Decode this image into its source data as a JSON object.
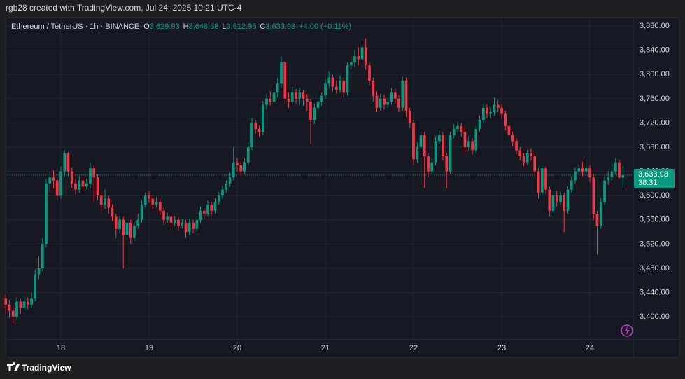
{
  "header": "rgb28 created with TradingView.com, Jul 24, 2025 10:21 UTC-4",
  "chart_data": {
    "type": "candlestick",
    "title": "Ethereum / TetherUS · 1h · BINANCE",
    "ohlc_legend": [
      {
        "key": "O",
        "label": "3,629.93"
      },
      {
        "key": "H",
        "label": "3,648.68"
      },
      {
        "key": "L",
        "label": "3,612.96"
      },
      {
        "key": "C",
        "label": "3,633.93"
      }
    ],
    "change": "+4.00 (+0.11%)",
    "x": [
      17.375,
      17.417,
      17.458,
      17.5,
      17.542,
      17.583,
      17.625,
      17.667,
      17.708,
      17.75,
      17.792,
      17.833,
      17.875,
      17.917,
      17.958,
      18,
      18.042,
      18.083,
      18.125,
      18.167,
      18.208,
      18.25,
      18.292,
      18.333,
      18.375,
      18.417,
      18.458,
      18.5,
      18.542,
      18.583,
      18.625,
      18.667,
      18.708,
      18.75,
      18.792,
      18.833,
      18.875,
      18.917,
      18.958,
      19,
      19.042,
      19.083,
      19.125,
      19.167,
      19.208,
      19.25,
      19.292,
      19.333,
      19.375,
      19.417,
      19.458,
      19.5,
      19.542,
      19.583,
      19.625,
      19.667,
      19.708,
      19.75,
      19.792,
      19.833,
      19.875,
      19.917,
      19.958,
      20,
      20.042,
      20.083,
      20.125,
      20.167,
      20.208,
      20.25,
      20.292,
      20.333,
      20.375,
      20.417,
      20.458,
      20.5,
      20.542,
      20.583,
      20.625,
      20.667,
      20.708,
      20.75,
      20.792,
      20.833,
      20.875,
      20.917,
      20.958,
      21,
      21.042,
      21.083,
      21.125,
      21.167,
      21.208,
      21.25,
      21.292,
      21.333,
      21.375,
      21.417,
      21.458,
      21.5,
      21.542,
      21.583,
      21.625,
      21.667,
      21.708,
      21.75,
      21.792,
      21.833,
      21.875,
      21.917,
      21.958,
      22,
      22.042,
      22.083,
      22.125,
      22.167,
      22.208,
      22.25,
      22.292,
      22.333,
      22.375,
      22.417,
      22.458,
      22.5,
      22.542,
      22.583,
      22.625,
      22.667,
      22.708,
      22.75,
      22.792,
      22.833,
      22.875,
      22.917,
      22.958,
      23,
      23.042,
      23.083,
      23.125,
      23.167,
      23.208,
      23.25,
      23.292,
      23.333,
      23.375,
      23.417,
      23.458,
      23.5,
      23.542,
      23.583,
      23.625,
      23.667,
      23.708,
      23.75,
      23.792,
      23.833,
      23.875,
      23.917,
      23.958,
      24,
      24.042,
      24.083,
      24.125,
      24.167,
      24.208,
      24.25,
      24.292,
      24.333,
      24.375
    ],
    "open": [
      3430,
      3420,
      3410,
      3400,
      3425,
      3415,
      3425,
      3420,
      3430,
      3470,
      3480,
      3520,
      3620,
      3630,
      3625,
      3600,
      3640,
      3670,
      3640,
      3620,
      3610,
      3625,
      3615,
      3620,
      3645,
      3630,
      3600,
      3585,
      3595,
      3580,
      3565,
      3545,
      3560,
      3535,
      3555,
      3530,
      3550,
      3560,
      3585,
      3600,
      3595,
      3585,
      3590,
      3575,
      3560,
      3565,
      3555,
      3560,
      3550,
      3555,
      3540,
      3555,
      3545,
      3560,
      3575,
      3570,
      3585,
      3575,
      3590,
      3600,
      3610,
      3620,
      3630,
      3655,
      3650,
      3640,
      3655,
      3680,
      3720,
      3710,
      3705,
      3750,
      3760,
      3755,
      3770,
      3785,
      3820,
      3760,
      3755,
      3770,
      3760,
      3770,
      3760,
      3755,
      3725,
      3745,
      3755,
      3765,
      3785,
      3795,
      3780,
      3775,
      3790,
      3770,
      3815,
      3820,
      3830,
      3825,
      3845,
      3815,
      3790,
      3765,
      3745,
      3760,
      3750,
      3755,
      3770,
      3760,
      3745,
      3790,
      3740,
      3720,
      3660,
      3680,
      3700,
      3665,
      3640,
      3655,
      3690,
      3700,
      3665,
      3640,
      3700,
      3710,
      3715,
      3705,
      3680,
      3690,
      3675,
      3710,
      3725,
      3745,
      3735,
      3738,
      3750,
      3745,
      3735,
      3715,
      3700,
      3690,
      3675,
      3665,
      3655,
      3670,
      3665,
      3640,
      3605,
      3645,
      3610,
      3575,
      3600,
      3590,
      3600,
      3575,
      3610,
      3625,
      3640,
      3645,
      3640,
      3645,
      3630,
      3570,
      3550,
      3590,
      3625,
      3630,
      3640,
      3655,
      3629.93
    ],
    "high": [
      3436,
      3428,
      3418,
      3432,
      3430,
      3433,
      3432,
      3440,
      3478,
      3500,
      3530,
      3628,
      3640,
      3642,
      3632,
      3648,
      3675,
      3672,
      3646,
      3628,
      3632,
      3630,
      3628,
      3655,
      3650,
      3635,
      3606,
      3610,
      3600,
      3586,
      3570,
      3566,
      3565,
      3562,
      3560,
      3556,
      3570,
      3592,
      3605,
      3608,
      3600,
      3598,
      3595,
      3580,
      3572,
      3570,
      3566,
      3565,
      3562,
      3560,
      3562,
      3560,
      3566,
      3582,
      3580,
      3592,
      3590,
      3596,
      3606,
      3616,
      3626,
      3638,
      3680,
      3662,
      3656,
      3662,
      3688,
      3728,
      3725,
      3716,
      3756,
      3768,
      3772,
      3778,
      3795,
      3830,
      3822,
      3770,
      3780,
      3776,
      3778,
      3774,
      3768,
      3760,
      3752,
      3762,
      3770,
      3792,
      3805,
      3800,
      3790,
      3798,
      3795,
      3820,
      3830,
      3840,
      3845,
      3852,
      3860,
      3820,
      3795,
      3772,
      3768,
      3766,
      3762,
      3778,
      3776,
      3765,
      3796,
      3795,
      3745,
      3725,
      3688,
      3706,
      3705,
      3670,
      3662,
      3698,
      3708,
      3705,
      3670,
      3706,
      3718,
      3722,
      3720,
      3710,
      3698,
      3695,
      3716,
      3732,
      3752,
      3750,
      3745,
      3762,
      3758,
      3750,
      3740,
      3720,
      3706,
      3695,
      3680,
      3670,
      3676,
      3678,
      3670,
      3645,
      3650,
      3648,
      3615,
      3606,
      3608,
      3606,
      3605,
      3615,
      3632,
      3646,
      3652,
      3656,
      3660,
      3650,
      3636,
      3575,
      3596,
      3632,
      3640,
      3652,
      3662,
      3660,
      3648.68
    ],
    "low": [
      3405,
      3398,
      3388,
      3395,
      3405,
      3410,
      3412,
      3415,
      3425,
      3462,
      3475,
      3515,
      3605,
      3612,
      3590,
      3595,
      3632,
      3632,
      3612,
      3602,
      3605,
      3608,
      3610,
      3612,
      3590,
      3592,
      3575,
      3578,
      3570,
      3558,
      3530,
      3538,
      3480,
      3528,
      3520,
      3525,
      3545,
      3556,
      3580,
      3588,
      3578,
      3580,
      3568,
      3552,
      3555,
      3548,
      3550,
      3542,
      3545,
      3530,
      3535,
      3538,
      3540,
      3555,
      3562,
      3565,
      3568,
      3570,
      3585,
      3595,
      3605,
      3615,
      3625,
      3640,
      3632,
      3636,
      3650,
      3675,
      3702,
      3698,
      3700,
      3742,
      3748,
      3750,
      3762,
      3778,
      3752,
      3745,
      3750,
      3752,
      3750,
      3748,
      3740,
      3685,
      3718,
      3738,
      3748,
      3760,
      3778,
      3772,
      3768,
      3770,
      3762,
      3765,
      3808,
      3812,
      3815,
      3818,
      3808,
      3782,
      3755,
      3738,
      3740,
      3742,
      3745,
      3750,
      3752,
      3738,
      3740,
      3730,
      3712,
      3650,
      3655,
      3672,
      3612,
      3630,
      3635,
      3650,
      3685,
      3658,
      3612,
      3636,
      3695,
      3705,
      3698,
      3672,
      3675,
      3668,
      3670,
      3705,
      3720,
      3728,
      3728,
      3732,
      3738,
      3728,
      3708,
      3692,
      3682,
      3668,
      3658,
      3648,
      3650,
      3658,
      3632,
      3595,
      3600,
      3602,
      3565,
      3570,
      3582,
      3585,
      3540,
      3570,
      3605,
      3620,
      3635,
      3632,
      3635,
      3622,
      3560,
      3503,
      3545,
      3585,
      3618,
      3625,
      3635,
      3628,
      3612.96
    ],
    "close": [
      3420,
      3410,
      3400,
      3425,
      3415,
      3425,
      3420,
      3430,
      3470,
      3480,
      3520,
      3620,
      3630,
      3625,
      3600,
      3640,
      3670,
      3640,
      3620,
      3610,
      3625,
      3615,
      3620,
      3645,
      3630,
      3600,
      3585,
      3595,
      3580,
      3565,
      3545,
      3560,
      3535,
      3555,
      3530,
      3550,
      3560,
      3585,
      3600,
      3595,
      3585,
      3590,
      3575,
      3560,
      3565,
      3555,
      3560,
      3550,
      3555,
      3540,
      3555,
      3545,
      3560,
      3575,
      3570,
      3585,
      3575,
      3590,
      3600,
      3610,
      3620,
      3630,
      3655,
      3650,
      3640,
      3655,
      3680,
      3720,
      3710,
      3705,
      3750,
      3760,
      3755,
      3770,
      3785,
      3820,
      3760,
      3755,
      3770,
      3760,
      3770,
      3760,
      3755,
      3725,
      3745,
      3755,
      3765,
      3785,
      3795,
      3780,
      3775,
      3790,
      3770,
      3815,
      3820,
      3830,
      3825,
      3845,
      3815,
      3790,
      3765,
      3745,
      3760,
      3750,
      3755,
      3770,
      3760,
      3745,
      3790,
      3740,
      3720,
      3660,
      3680,
      3700,
      3665,
      3640,
      3655,
      3690,
      3700,
      3665,
      3640,
      3700,
      3710,
      3715,
      3705,
      3680,
      3690,
      3675,
      3710,
      3725,
      3745,
      3735,
      3738,
      3750,
      3745,
      3735,
      3715,
      3700,
      3690,
      3675,
      3665,
      3655,
      3670,
      3665,
      3640,
      3605,
      3645,
      3610,
      3575,
      3600,
      3590,
      3600,
      3575,
      3610,
      3625,
      3640,
      3645,
      3640,
      3645,
      3630,
      3570,
      3550,
      3590,
      3625,
      3630,
      3640,
      3655,
      3629.93,
      3633.93
    ],
    "up_color": "#089981",
    "down_color": "#f23645",
    "xlim": [
      17.373,
      24.492
    ],
    "xticks": [
      18,
      19,
      20,
      21,
      22,
      23,
      24
    ],
    "ylim": [
      3362,
      3894
    ],
    "yticks": [
      {
        "value": 3400,
        "label": "3,400.00"
      },
      {
        "value": 3440,
        "label": "3,440.00"
      },
      {
        "value": 3480,
        "label": "3,480.00"
      },
      {
        "value": 3520,
        "label": "3,520.00"
      },
      {
        "value": 3560,
        "label": "3,560.00"
      },
      {
        "value": 3600,
        "label": "3,600.00"
      },
      {
        "value": 3640,
        "label": "3,640.00"
      },
      {
        "value": 3680,
        "label": "3,680.00"
      },
      {
        "value": 3720,
        "label": "3,720.00"
      },
      {
        "value": 3760,
        "label": "3,760.00"
      },
      {
        "value": 3800,
        "label": "3,800.00"
      },
      {
        "value": 3840,
        "label": "3,840.00"
      },
      {
        "value": 3880,
        "label": "3,880.00"
      }
    ],
    "grid": true,
    "last_price": {
      "value": 3633.93,
      "label": "3,633.93"
    },
    "countdown": "38:31"
  },
  "footer": "TradingView"
}
